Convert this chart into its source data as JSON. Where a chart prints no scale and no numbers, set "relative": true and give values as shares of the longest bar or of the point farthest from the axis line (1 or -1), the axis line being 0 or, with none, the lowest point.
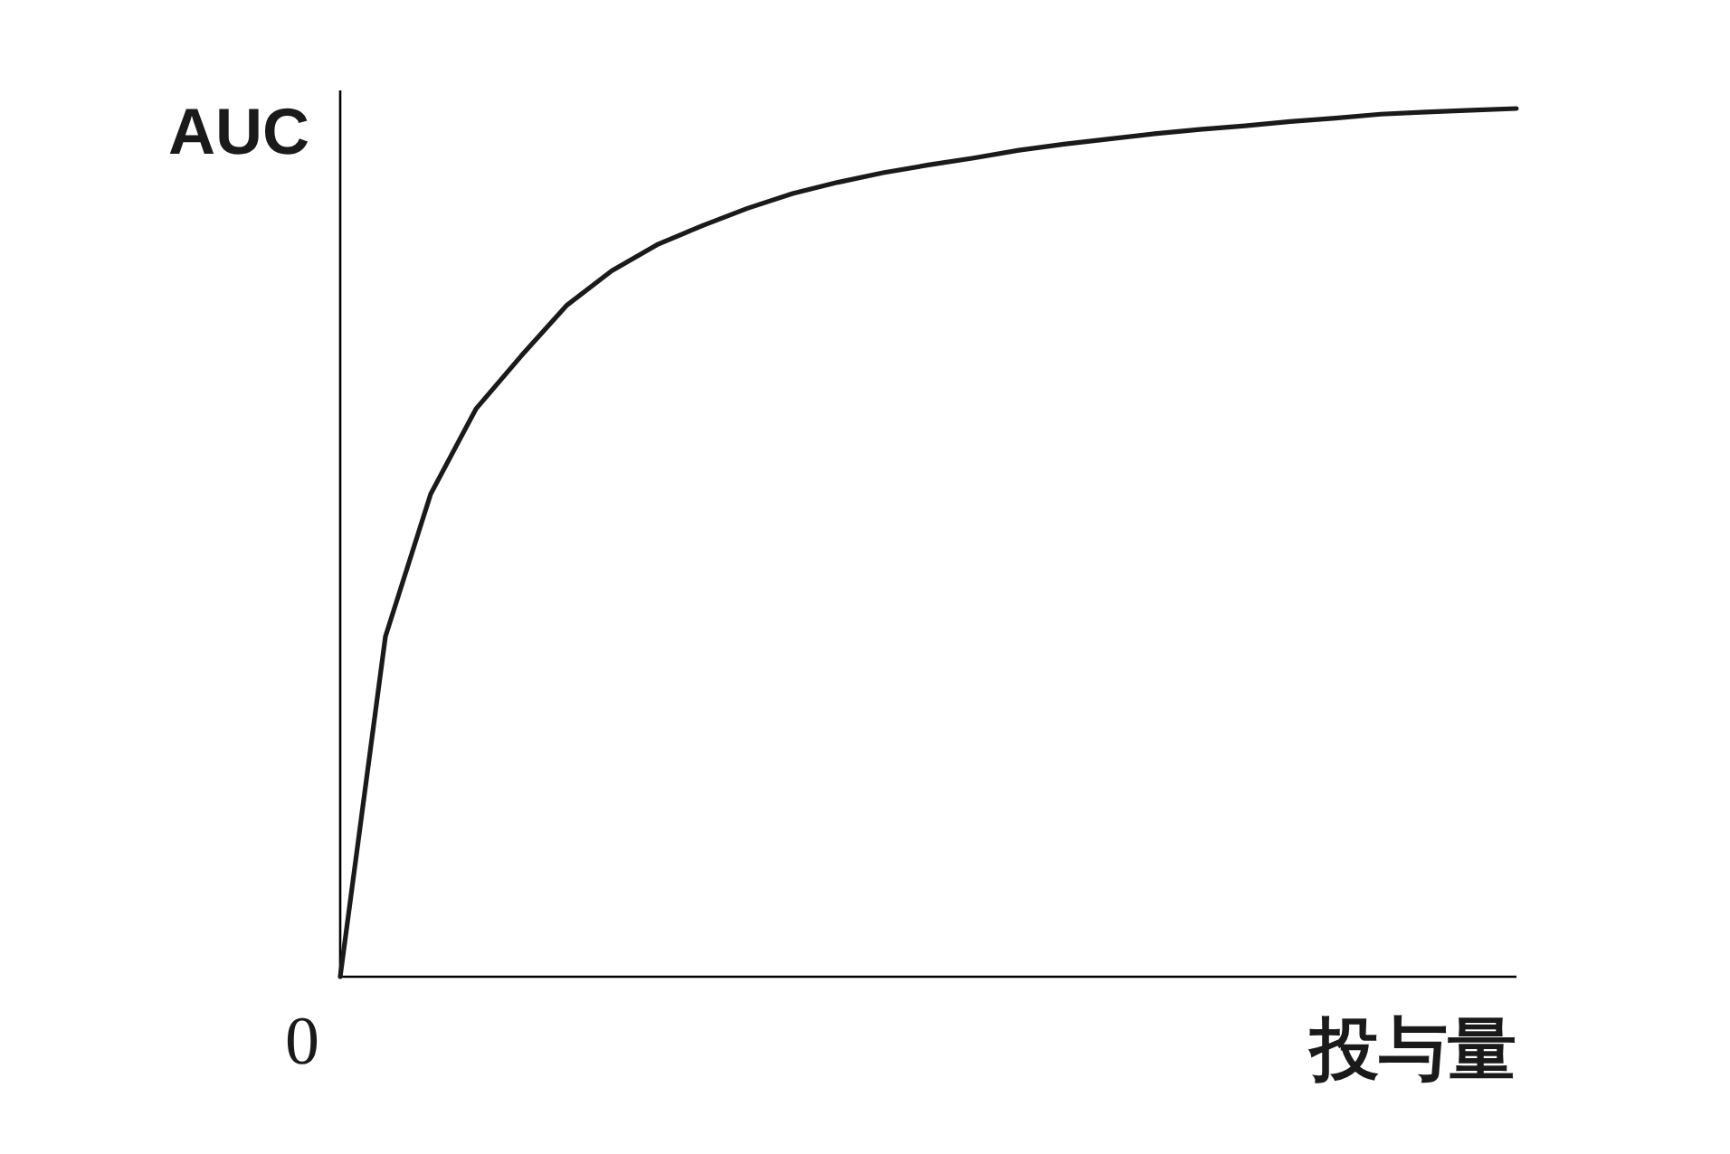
{
  "chart_data": {
    "type": "line",
    "relative": true,
    "xlabel": "投与量",
    "ylabel": "AUC",
    "annotations": [
      "0"
    ],
    "categories": [
      null,
      null,
      null,
      null,
      null,
      null,
      null,
      null,
      null,
      null,
      null,
      null,
      null,
      null,
      null,
      null,
      null,
      null,
      null,
      null,
      null,
      null,
      null,
      null,
      null,
      null,
      null
    ],
    "series": [
      {
        "color": "#1a1a1a",
        "values": [
          0,
          0.392,
          0.556,
          0.654,
          0.715,
          0.773,
          0.813,
          0.843,
          0.865,
          0.885,
          0.902,
          0.915,
          0.926,
          0.935,
          0.943,
          0.952,
          0.959,
          0.965,
          0.971,
          0.976,
          0.98,
          0.985,
          0.989,
          0.9935,
          0.996,
          0.998,
          1
        ]
      }
    ]
  }
}
